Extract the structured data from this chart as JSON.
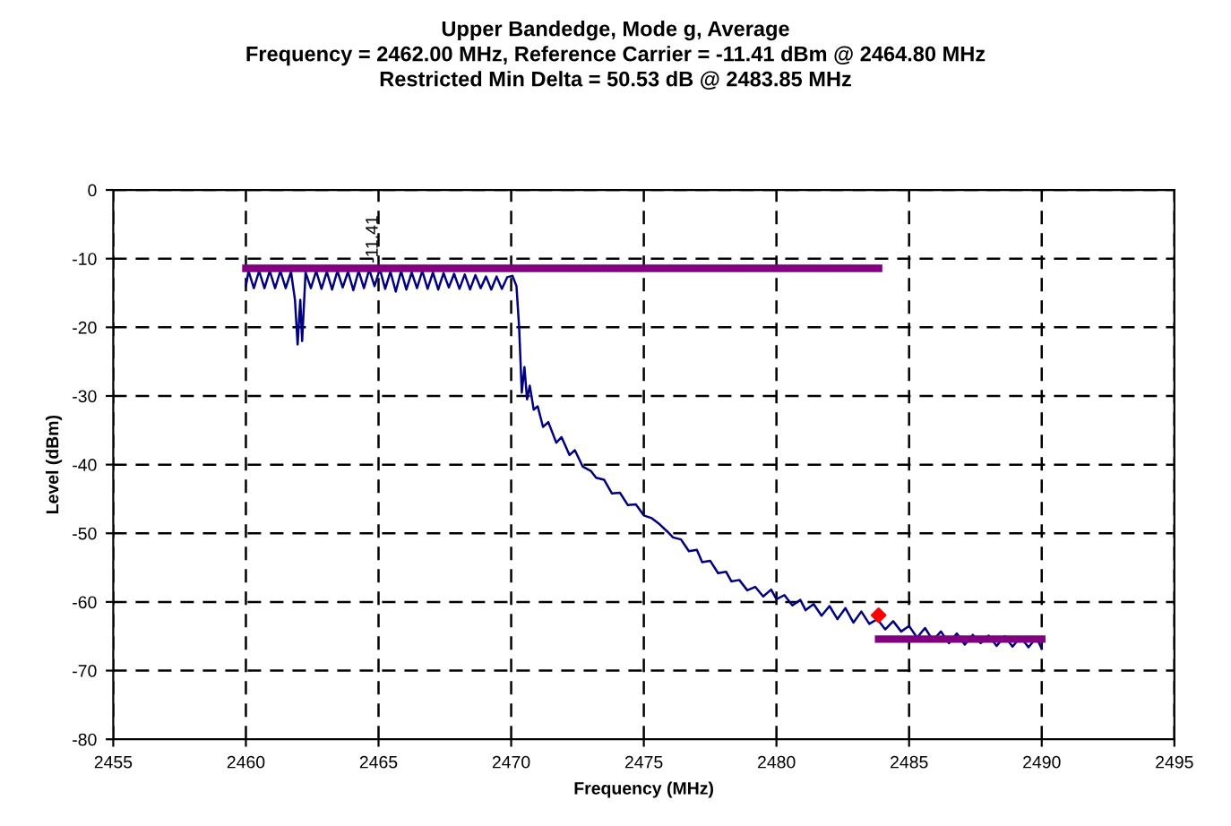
{
  "chart_data": {
    "type": "line",
    "title": "Upper Bandedge, Mode g, Average\nFrequency = 2462.00 MHz, Reference Carrier = -11.41 dBm @ 2464.80 MHz\nRestricted Min Delta = 50.53 dB @ 2483.85 MHz",
    "xlabel": "Frequency (MHz)",
    "ylabel": "Level (dBm)",
    "xlim": [
      2455,
      2495
    ],
    "xticks": [
      2455,
      2460,
      2465,
      2470,
      2475,
      2480,
      2485,
      2490,
      2495
    ],
    "ylim": [
      -80,
      0
    ],
    "yticks": [
      -80,
      -70,
      -60,
      -50,
      -40,
      -30,
      -20,
      -10,
      0
    ],
    "grid": true,
    "legend": false,
    "annotations": [
      {
        "text": "-11.41",
        "x": 2464.8,
        "y": -11.41
      }
    ],
    "series": [
      {
        "color": "#000080",
        "line_style": "solid",
        "x": [
          2460.0,
          2460.1,
          2460.3,
          2460.5,
          2460.7,
          2460.9,
          2461.1,
          2461.3,
          2461.5,
          2461.7,
          2461.85,
          2461.95,
          2462.05,
          2462.12,
          2462.25,
          2462.45,
          2462.65,
          2462.85,
          2463.05,
          2463.25,
          2463.45,
          2463.65,
          2463.85,
          2464.05,
          2464.25,
          2464.45,
          2464.65,
          2464.85,
          2465.05,
          2465.25,
          2465.45,
          2465.65,
          2465.85,
          2466.05,
          2466.25,
          2466.45,
          2466.65,
          2466.85,
          2467.05,
          2467.25,
          2467.45,
          2467.65,
          2467.85,
          2468.05,
          2468.25,
          2468.45,
          2468.65,
          2468.85,
          2469.05,
          2469.25,
          2469.45,
          2469.65,
          2469.85,
          2470.05,
          2470.2,
          2470.3,
          2470.4,
          2470.5,
          2470.6,
          2470.7,
          2470.85,
          2471.0,
          2471.2,
          2471.4,
          2471.7,
          2471.9,
          2472.2,
          2472.4,
          2472.7,
          2473.0,
          2473.2,
          2473.5,
          2473.8,
          2474.1,
          2474.4,
          2474.7,
          2475.0,
          2475.3,
          2475.6,
          2475.9,
          2476.1,
          2476.4,
          2476.7,
          2477.0,
          2477.2,
          2477.5,
          2477.8,
          2478.1,
          2478.3,
          2478.6,
          2478.9,
          2479.2,
          2479.5,
          2479.8,
          2480.0,
          2480.3,
          2480.6,
          2480.9,
          2481.1,
          2481.4,
          2481.7,
          2482.0,
          2482.3,
          2482.6,
          2482.9,
          2483.2,
          2483.5,
          2483.8,
          2484.1,
          2484.4,
          2484.7,
          2485.0,
          2485.3,
          2485.6,
          2485.9,
          2486.2,
          2486.5,
          2486.8,
          2487.1,
          2487.4,
          2487.7,
          2488.0,
          2488.3,
          2488.6,
          2488.9,
          2489.2,
          2489.5,
          2489.8,
          2490.0
        ],
        "values": [
          -14.0,
          -11.8,
          -14.3,
          -11.8,
          -14.3,
          -11.8,
          -14.3,
          -11.8,
          -14.3,
          -11.9,
          -16,
          -22.5,
          -16,
          -22,
          -12.0,
          -14.3,
          -11.8,
          -14.4,
          -11.9,
          -14.5,
          -11.8,
          -14.2,
          -11.9,
          -14.6,
          -11.8,
          -14.3,
          -11.6,
          -14.0,
          -11.5,
          -14.4,
          -11.9,
          -14.8,
          -11.8,
          -14.5,
          -12.0,
          -14.3,
          -11.8,
          -14.4,
          -12.0,
          -14.5,
          -12.1,
          -14.2,
          -12.2,
          -14.4,
          -12.3,
          -14.5,
          -12.4,
          -14.3,
          -12.6,
          -14.5,
          -12.6,
          -14.4,
          -12.7,
          -12.5,
          -14,
          -20,
          -29.5,
          -25.8,
          -30.5,
          -28.5,
          -32,
          -31.5,
          -34.5,
          -33.8,
          -36.8,
          -36,
          -38.6,
          -37.9,
          -40.3,
          -40.9,
          -41.9,
          -42.2,
          -44.2,
          -44.1,
          -45.9,
          -45.8,
          -47.4,
          -47.8,
          -48.7,
          -49.8,
          -50.6,
          -50.9,
          -52.6,
          -52.4,
          -54.2,
          -54.0,
          -55.8,
          -55.6,
          -57.0,
          -56.8,
          -58.3,
          -57.8,
          -59.2,
          -58.2,
          -59.6,
          -59.0,
          -60.5,
          -59.7,
          -61.2,
          -60.3,
          -62.0,
          -60.6,
          -62.5,
          -60.9,
          -63.0,
          -61.4,
          -63.2,
          -62.5,
          -64.0,
          -62.8,
          -64.3,
          -63.5,
          -65.2,
          -63.8,
          -65.6,
          -64.3,
          -66.0,
          -64.6,
          -66.2,
          -64.8,
          -66.0,
          -64.9,
          -66.4,
          -65.0,
          -66.5,
          -65.1,
          -66.6,
          -65.2,
          -66.8
        ]
      },
      {
        "type": "line",
        "color": "#800080",
        "x": [
          2460,
          2483.85
        ],
        "values": [
          -11.41,
          -11.41
        ]
      },
      {
        "type": "line",
        "color": "#800080",
        "x": [
          2483.85,
          2490
        ],
        "values": [
          -65.4,
          -65.4
        ]
      },
      {
        "type": "scatter",
        "color": "#ff0000",
        "marker": "diamond",
        "x": [
          2483.85
        ],
        "values": [
          -61.94
        ]
      }
    ]
  }
}
